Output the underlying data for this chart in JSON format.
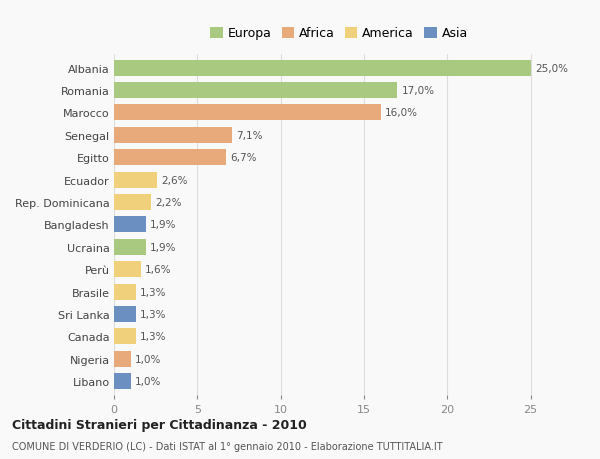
{
  "countries": [
    "Albania",
    "Romania",
    "Marocco",
    "Senegal",
    "Egitto",
    "Ecuador",
    "Rep. Dominicana",
    "Bangladesh",
    "Ucraina",
    "Perù",
    "Brasile",
    "Sri Lanka",
    "Canada",
    "Nigeria",
    "Libano"
  ],
  "values": [
    25.0,
    17.0,
    16.0,
    7.1,
    6.7,
    2.6,
    2.2,
    1.9,
    1.9,
    1.6,
    1.3,
    1.3,
    1.3,
    1.0,
    1.0
  ],
  "labels": [
    "25,0%",
    "17,0%",
    "16,0%",
    "7,1%",
    "6,7%",
    "2,6%",
    "2,2%",
    "1,9%",
    "1,9%",
    "1,6%",
    "1,3%",
    "1,3%",
    "1,3%",
    "1,0%",
    "1,0%"
  ],
  "continents": [
    "Europa",
    "Europa",
    "Africa",
    "Africa",
    "Africa",
    "America",
    "America",
    "Asia",
    "Europa",
    "America",
    "America",
    "Asia",
    "America",
    "Africa",
    "Asia"
  ],
  "colors": {
    "Europa": "#a8c97f",
    "Africa": "#e8aa7a",
    "America": "#f0d07a",
    "Asia": "#6a8fc0"
  },
  "title": "Cittadini Stranieri per Cittadinanza - 2010",
  "subtitle": "COMUNE DI VERDERIO (LC) - Dati ISTAT al 1° gennaio 2010 - Elaborazione TUTTITALIA.IT",
  "xlim": [
    0,
    27
  ],
  "xticks": [
    0,
    5,
    10,
    15,
    20,
    25
  ],
  "background_color": "#f9f9f9",
  "bar_height": 0.72,
  "grid_color": "#dddddd",
  "legend_order": [
    "Europa",
    "Africa",
    "America",
    "Asia"
  ]
}
